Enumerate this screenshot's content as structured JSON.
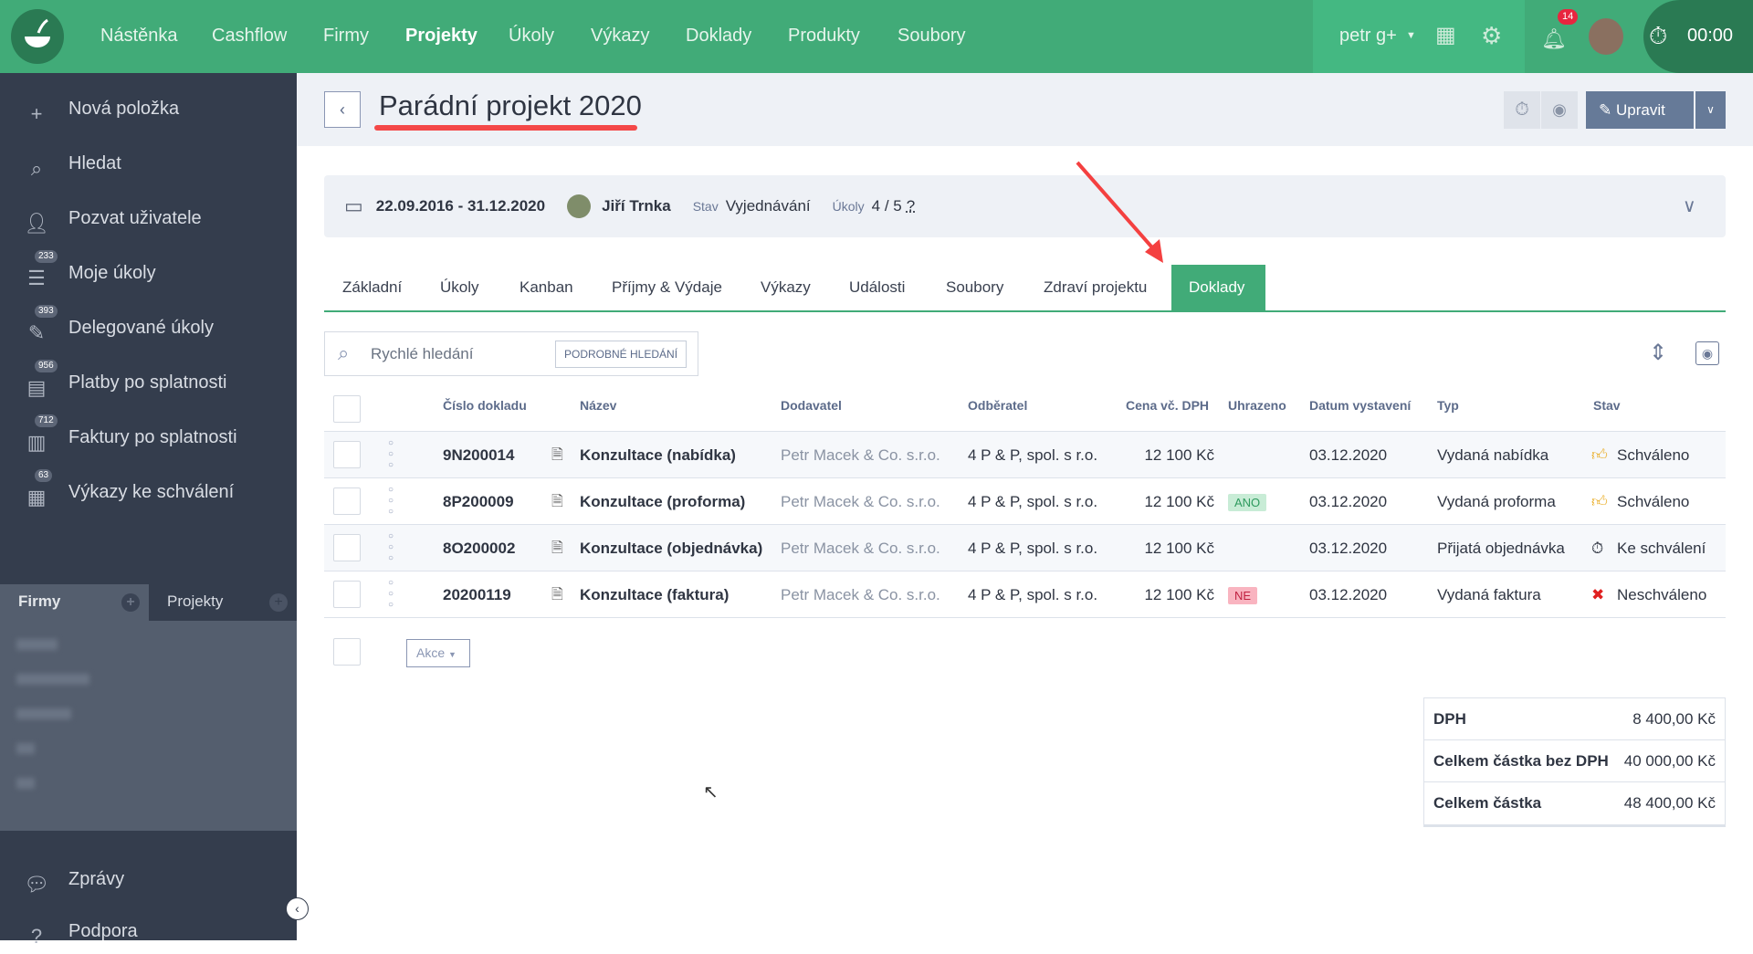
{
  "topbar": {
    "nav": [
      "Nástěnka",
      "Cashflow",
      "Firmy",
      "Projekty",
      "Úkoly",
      "Výkazy",
      "Doklady",
      "Produkty",
      "Soubory"
    ],
    "active_nav": "Projekty",
    "user": "petr g+",
    "notifications": "14",
    "timer": "00:00",
    "brand_color": "#41ab78"
  },
  "sidebar": {
    "items": [
      {
        "label": "Nová položka",
        "icon": "plus-icon"
      },
      {
        "label": "Hledat",
        "icon": "search-icon"
      },
      {
        "label": "Pozvat uživatele",
        "icon": "add-user-icon"
      },
      {
        "label": "Moje úkoly",
        "icon": "task-list-icon",
        "count": "233"
      },
      {
        "label": "Delegované úkoly",
        "icon": "delegate-icon",
        "count": "393"
      },
      {
        "label": "Platby po splatnosti",
        "icon": "payment-icon",
        "count": "956"
      },
      {
        "label": "Faktury po splatnosti",
        "icon": "invoice-icon",
        "count": "712"
      },
      {
        "label": "Výkazy ke schválení",
        "icon": "timesheet-icon",
        "count": "63"
      }
    ],
    "tabs": [
      "Firmy",
      "Projekty"
    ],
    "bottom": [
      {
        "label": "Zprávy",
        "icon": "chat-icon"
      },
      {
        "label": "Podpora",
        "icon": "help-icon"
      }
    ]
  },
  "page": {
    "title": "Parádní projekt 2020",
    "edit_label": "Upravit",
    "info": {
      "dates": "22.09.2016 - 31.12.2020",
      "owner": "Jiří Trnka",
      "status_label": "Stav",
      "status": "Vyjednávání",
      "tasks_label": "Úkoly",
      "tasks": "4 / 5",
      "tasks_help": "?"
    },
    "tabs": [
      "Základní",
      "Úkoly",
      "Kanban",
      "Příjmy & Výdaje",
      "Výkazy",
      "Události",
      "Soubory",
      "Zdraví projektu",
      "Doklady"
    ],
    "active_tab": "Doklady",
    "search": {
      "placeholder": "Rychlé hledání",
      "advanced": "PODROBNÉ HLEDÁNÍ"
    },
    "table": {
      "headers": [
        "Číslo dokladu",
        "Název",
        "Dodavatel",
        "Odběratel",
        "Cena vč. DPH",
        "Uhrazeno",
        "Datum vystavení",
        "Typ",
        "Stav"
      ],
      "rows": [
        {
          "number": "9N200014",
          "name": "Konzultace (nabídka)",
          "supplier": "Petr Macek & Co. s.r.o.",
          "customer": "4 P & P, spol. s r.o.",
          "price": "12 100 Kč",
          "paid": "",
          "date": "03.12.2020",
          "type": "Vydaná nabídka",
          "status": "Schváleno",
          "status_icon": "thumbs-up-icon"
        },
        {
          "number": "8P200009",
          "name": "Konzultace (proforma)",
          "supplier": "Petr Macek & Co. s.r.o.",
          "customer": "4 P & P, spol. s r.o.",
          "price": "12 100 Kč",
          "paid": "ANO",
          "date": "03.12.2020",
          "type": "Vydaná proforma",
          "status": "Schváleno",
          "status_icon": "thumbs-up-icon"
        },
        {
          "number": "8O200002",
          "name": "Konzultace (objednávka)",
          "supplier": "Petr Macek & Co. s.r.o.",
          "customer": "4 P & P, spol. s r.o.",
          "price": "12 100 Kč",
          "paid": "",
          "date": "03.12.2020",
          "type": "Přijatá objednávka",
          "status": "Ke schválení",
          "status_icon": "stopwatch-icon"
        },
        {
          "number": "20200119",
          "name": "Konzultace (faktura)",
          "supplier": "Petr Macek & Co. s.r.o.",
          "customer": "4 P & P, spol. s r.o.",
          "price": "12 100 Kč",
          "paid": "NE",
          "date": "03.12.2020",
          "type": "Vydaná faktura",
          "status": "Neschváleno",
          "status_icon": "cross-icon"
        }
      ],
      "actions_label": "Akce"
    },
    "totals": [
      {
        "label": "DPH",
        "value": "8 400,00 Kč"
      },
      {
        "label": "Celkem částka bez DPH",
        "value": "40 000,00 Kč"
      },
      {
        "label": "Celkem částka",
        "value": "48 400,00 Kč"
      }
    ]
  }
}
